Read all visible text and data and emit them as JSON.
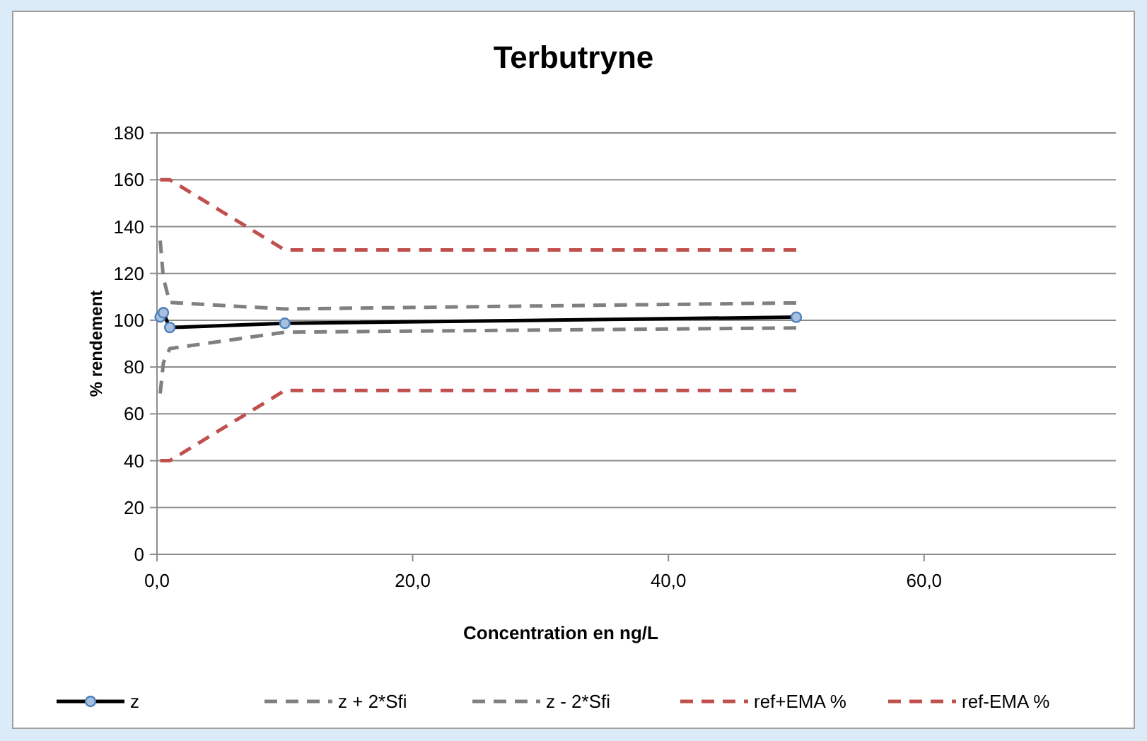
{
  "chart_data": {
    "type": "line",
    "title": "Terbutryne",
    "xlabel": "Concentration en ng/L",
    "ylabel": "% rendement",
    "xlim": [
      0,
      75
    ],
    "xticks": [
      {
        "value": 0,
        "label": "0,0"
      },
      {
        "value": 20,
        "label": "20,0"
      },
      {
        "value": 40,
        "label": "40,0"
      },
      {
        "value": 60,
        "label": "60,0"
      }
    ],
    "ylim": [
      0,
      180
    ],
    "yticks": [
      0,
      20,
      40,
      60,
      80,
      100,
      120,
      140,
      160,
      180
    ],
    "grid": "y",
    "legend": "bottom",
    "x": [
      0.25,
      0.5,
      1,
      10,
      50
    ],
    "series": [
      {
        "name": "z",
        "color": "#000000",
        "values": [
          101.4,
          103.2,
          96.9,
          98.7,
          101.3
        ],
        "marker": "circle",
        "line_style": "solid"
      },
      {
        "name": "z + 2*Sfi",
        "color": "#808080",
        "values": [
          134,
          118,
          107.6,
          104.8,
          107.4
        ],
        "marker": "none",
        "line_style": "dashed"
      },
      {
        "name": "z - 2*Sfi",
        "color": "#808080",
        "values": [
          68.7,
          81.8,
          87.9,
          94.9,
          96.7
        ],
        "marker": "none",
        "line_style": "dashed"
      },
      {
        "name": "ref+EMA %",
        "color": "#c0504d",
        "values": [
          160,
          160,
          160,
          130,
          130
        ],
        "marker": "none",
        "line_style": "dashed"
      },
      {
        "name": "ref-EMA %",
        "color": "#c0504d",
        "values": [
          40,
          40,
          40,
          70,
          70
        ],
        "marker": "none",
        "line_style": "dashed"
      }
    ]
  }
}
